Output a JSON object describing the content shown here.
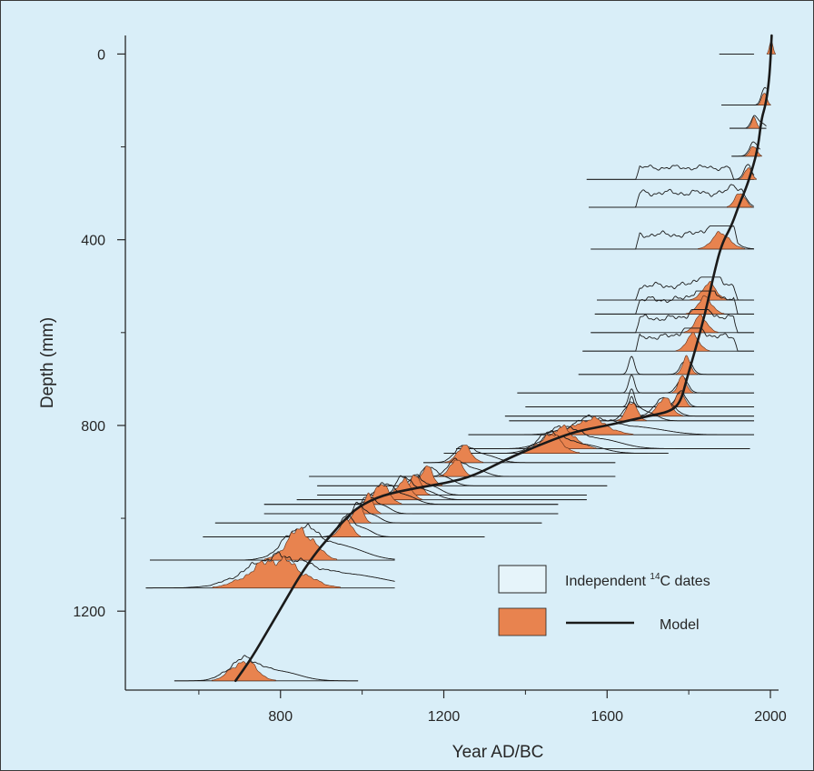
{
  "colors": {
    "background": "#d9eef8",
    "orange": "#e8834f",
    "line": "#1a1a1a",
    "frame": "#3a3a3a"
  },
  "chart_data": {
    "type": "line",
    "title": "",
    "xlabel": "Year AD/BC",
    "ylabel": "Depth (mm)",
    "xlim": [
      420,
      2020
    ],
    "ylim": [
      1370,
      -40
    ],
    "y_inverted": true,
    "xticks_major": [
      800,
      1200,
      1600,
      2000
    ],
    "xticks_minor": [
      600,
      1000,
      1400,
      1800
    ],
    "yticks_major": [
      0,
      400,
      800,
      1200
    ],
    "yticks_minor": [
      200,
      600,
      1000
    ],
    "legend": {
      "position": "bottom-right",
      "entries": [
        {
          "label_prefix": "Independent ",
          "label_sup": "14",
          "label_suffix": "C dates",
          "kind": "outline-box"
        },
        {
          "label": "Model",
          "kind": "orange-box-and-line"
        }
      ]
    },
    "model_line": {
      "name": "Model",
      "points": [
        [
          2003,
          -40
        ],
        [
          2000,
          20
        ],
        [
          1995,
          70
        ],
        [
          1988,
          110
        ],
        [
          1978,
          140
        ],
        [
          1970,
          200
        ],
        [
          1955,
          250
        ],
        [
          1940,
          290
        ],
        [
          1925,
          320
        ],
        [
          1905,
          370
        ],
        [
          1880,
          410
        ],
        [
          1860,
          480
        ],
        [
          1840,
          560
        ],
        [
          1815,
          640
        ],
        [
          1795,
          700
        ],
        [
          1780,
          750
        ],
        [
          1755,
          770
        ],
        [
          1700,
          780
        ],
        [
          1650,
          790
        ],
        [
          1600,
          800
        ],
        [
          1540,
          810
        ],
        [
          1500,
          820
        ],
        [
          1440,
          840
        ],
        [
          1360,
          870
        ],
        [
          1270,
          910
        ],
        [
          1200,
          925
        ],
        [
          1130,
          935
        ],
        [
          1050,
          950
        ],
        [
          990,
          975
        ],
        [
          955,
          1005
        ],
        [
          930,
          1030
        ],
        [
          890,
          1070
        ],
        [
          850,
          1120
        ],
        [
          810,
          1180
        ],
        [
          770,
          1240
        ],
        [
          730,
          1300
        ],
        [
          690,
          1350
        ]
      ]
    },
    "dated_samples": [
      {
        "depth": 0,
        "xmin": 1875,
        "xmax": 1960,
        "peak_year": 2002,
        "width": 4,
        "height": 22
      },
      {
        "depth": 110,
        "xmin": 1880,
        "xmax": 1990,
        "peak_year": 1985,
        "width": 6,
        "height": 20
      },
      {
        "depth": 160,
        "xmin": 1900,
        "xmax": 1990,
        "peak_year": 1960,
        "width": 6,
        "height": 16
      },
      {
        "depth": 220,
        "xmin": 1905,
        "xmax": 1975,
        "peak_year": 1958,
        "width": 8,
        "height": 16
      },
      {
        "depth": 270,
        "xmin": 1550,
        "xmax": 1960,
        "peak_year": 1945,
        "width": 8,
        "height": 18,
        "plateau": [
          1680,
          1900
        ]
      },
      {
        "depth": 330,
        "xmin": 1555,
        "xmax": 1960,
        "peak_year": 1925,
        "width": 12,
        "height": 22,
        "plateau": [
          1680,
          1910
        ]
      },
      {
        "depth": 420,
        "xmin": 1560,
        "xmax": 1960,
        "peak_year": 1880,
        "width": 22,
        "height": 22,
        "plateau": [
          1680,
          1910
        ]
      },
      {
        "depth": 530,
        "xmin": 1575,
        "xmax": 1960,
        "peak_year": 1850,
        "width": 18,
        "height": 22,
        "plateau": [
          1680,
          1910
        ]
      },
      {
        "depth": 560,
        "xmin": 1570,
        "xmax": 1960,
        "peak_year": 1840,
        "width": 18,
        "height": 22,
        "plateau": [
          1680,
          1910
        ]
      },
      {
        "depth": 600,
        "xmin": 1560,
        "xmax": 1960,
        "peak_year": 1830,
        "width": 16,
        "height": 22,
        "plateau": [
          1680,
          1910
        ]
      },
      {
        "depth": 640,
        "xmin": 1540,
        "xmax": 1960,
        "peak_year": 1810,
        "width": 16,
        "height": 22,
        "plateau": [
          1680,
          1910
        ]
      },
      {
        "depth": 690,
        "xmin": 1530,
        "xmax": 1960,
        "peak_year": 1795,
        "width": 10,
        "height": 22,
        "bump": 1660
      },
      {
        "depth": 730,
        "xmin": 1380,
        "xmax": 1960,
        "peak_year": 1785,
        "width": 10,
        "height": 22,
        "bump": 1660
      },
      {
        "depth": 760,
        "xmin": 1400,
        "xmax": 1960,
        "peak_year": 1780,
        "width": 10,
        "height": 22,
        "bump": 1660
      },
      {
        "depth": 780,
        "xmin": 1350,
        "xmax": 1960,
        "peak_year": 1740,
        "width": 18,
        "height": 24,
        "bump": 1660
      },
      {
        "depth": 790,
        "xmin": 1360,
        "xmax": 1960,
        "peak_year": 1660,
        "width": 14,
        "height": 24
      },
      {
        "depth": 820,
        "xmin": 1260,
        "xmax": 1960,
        "peak_year": 1560,
        "width": 40,
        "height": 22
      },
      {
        "depth": 850,
        "xmin": 1230,
        "xmax": 1950,
        "peak_year": 1490,
        "width": 32,
        "height": 28
      },
      {
        "depth": 860,
        "xmin": 1200,
        "xmax": 1750,
        "peak_year": 1460,
        "width": 28,
        "height": 26
      },
      {
        "depth": 880,
        "xmin": 1150,
        "xmax": 1620,
        "peak_year": 1250,
        "width": 18,
        "height": 22
      },
      {
        "depth": 910,
        "xmin": 870,
        "xmax": 1620,
        "peak_year": 1230,
        "width": 16,
        "height": 22
      },
      {
        "depth": 930,
        "xmin": 890,
        "xmax": 1600,
        "peak_year": 1160,
        "width": 14,
        "height": 26
      },
      {
        "depth": 950,
        "xmin": 890,
        "xmax": 1550,
        "peak_year": 1130,
        "width": 14,
        "height": 26
      },
      {
        "depth": 960,
        "xmin": 840,
        "xmax": 1550,
        "peak_year": 1100,
        "width": 18,
        "height": 28
      },
      {
        "depth": 970,
        "xmin": 760,
        "xmax": 1480,
        "peak_year": 1050,
        "width": 18,
        "height": 28
      },
      {
        "depth": 990,
        "xmin": 760,
        "xmax": 1480,
        "peak_year": 1015,
        "width": 12,
        "height": 24
      },
      {
        "depth": 1010,
        "xmin": 640,
        "xmax": 1440,
        "peak_year": 990,
        "width": 12,
        "height": 24
      },
      {
        "depth": 1040,
        "xmin": 610,
        "xmax": 1300,
        "peak_year": 960,
        "width": 14,
        "height": 26
      },
      {
        "depth": 1090,
        "xmin": 480,
        "xmax": 1080,
        "peak_year": 850,
        "width": 34,
        "height": 42
      },
      {
        "depth": 1150,
        "xmin": 470,
        "xmax": 1080,
        "peak_year": 790,
        "width": 60,
        "height": 40
      },
      {
        "depth": 1350,
        "xmin": 540,
        "xmax": 990,
        "peak_year": 710,
        "width": 30,
        "height": 28
      }
    ]
  }
}
